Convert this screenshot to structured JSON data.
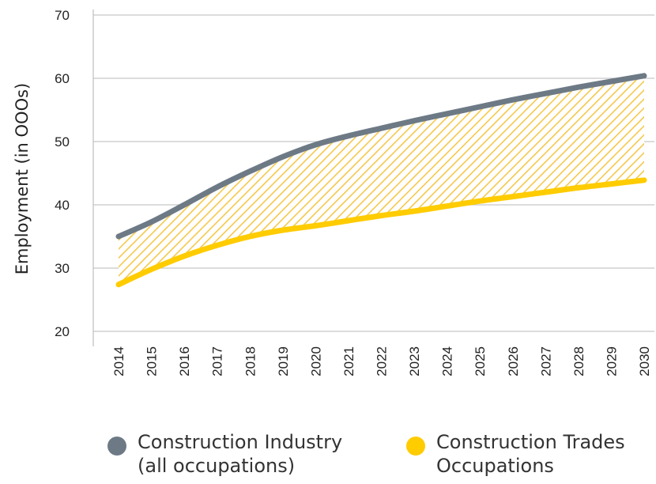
{
  "chart_data": {
    "type": "area",
    "title": "",
    "ylabel": "Employment (in OOOs)",
    "xlabel": "",
    "x": [
      "2014",
      "2015",
      "2016",
      "2017",
      "2018",
      "2019",
      "2020",
      "2021",
      "2022",
      "2023",
      "2024",
      "2025",
      "2026",
      "2027",
      "2028",
      "2029",
      "2030"
    ],
    "yticks": [
      "70",
      "60",
      "50",
      "40",
      "30",
      "20"
    ],
    "ylim": [
      20,
      70
    ],
    "grid": true,
    "legend_position": "bottom",
    "series": [
      {
        "name": "Construction Industry\n(all occupations)",
        "color": "#6d7a86",
        "values": [
          35,
          37.3,
          40,
          42.8,
          45.3,
          47.6,
          49.5,
          50.9,
          52.1,
          53.3,
          54.4,
          55.5,
          56.6,
          57.6,
          58.6,
          59.5,
          60.4
        ]
      },
      {
        "name": "Construction Trades\nOccupations",
        "color": "#ffcc00",
        "values": [
          27.4,
          29.8,
          31.9,
          33.6,
          35,
          36,
          36.7,
          37.5,
          38.3,
          39,
          39.8,
          40.6,
          41.3,
          42,
          42.7,
          43.3,
          43.9
        ]
      }
    ],
    "fill_between": {
      "pattern": "diagonal-hatch",
      "color": "#f5c84c"
    }
  }
}
